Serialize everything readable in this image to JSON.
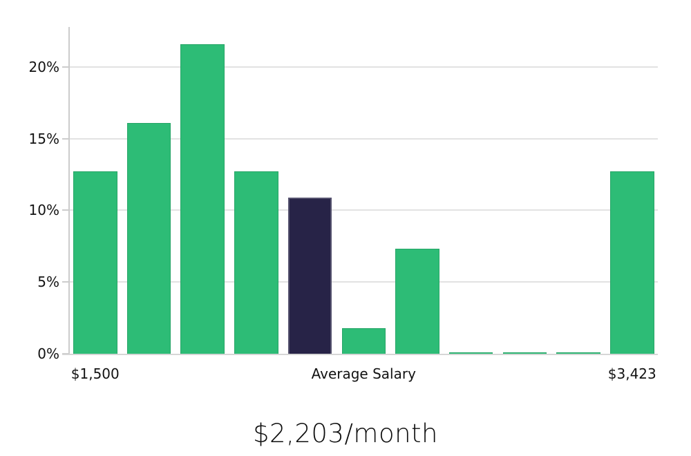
{
  "chart_data": {
    "type": "bar",
    "subtype": "histogram",
    "title": "$2,203/month",
    "values": [
      12.7,
      16.1,
      21.6,
      12.7,
      10.9,
      1.8,
      7.3,
      0.1,
      0.1,
      0.1,
      12.7
    ],
    "highlight_index": 4,
    "y_ticks": [
      {
        "label": "0%",
        "value": 0
      },
      {
        "label": "5%",
        "value": 5
      },
      {
        "label": "10%",
        "value": 10
      },
      {
        "label": "15%",
        "value": 15
      },
      {
        "label": "20%",
        "value": 20
      }
    ],
    "x_tick_labels": [
      {
        "label": "$1,500",
        "bar_index": 0
      },
      {
        "label": "Average Salary",
        "bar_index": 5
      },
      {
        "label": "$3,423",
        "bar_index": 10
      }
    ],
    "ylim": [
      0,
      22.8
    ],
    "grid": true,
    "legend": false,
    "colors": {
      "bar": "#2dbc76",
      "highlight_bar": "#272347",
      "grid_line": "#e2e2e2",
      "axis_line": "#cccccc",
      "baseline": "#d6d6d6",
      "tick_text": "#121212",
      "title_text": "#0d0d0d"
    }
  }
}
